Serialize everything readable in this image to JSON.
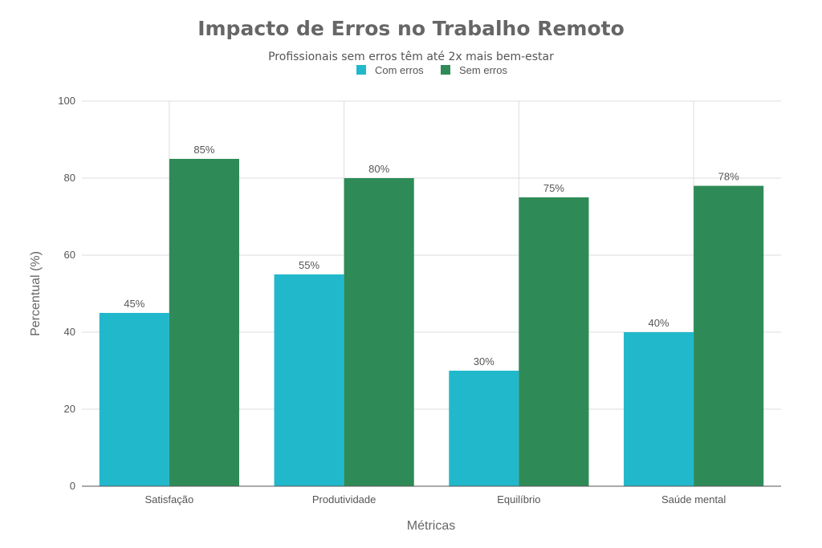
{
  "chart_data": {
    "type": "bar",
    "title": "Impacto de Erros no Trabalho Remoto",
    "subtitle": "Profissionais sem erros têm até 2x mais bem-estar",
    "xlabel": "Métricas",
    "ylabel": "Percentual (%)",
    "categories": [
      "Satisfação",
      "Produtividade",
      "Equilíbrio",
      "Saúde mental"
    ],
    "series": [
      {
        "name": "Com erros",
        "color": "#22b8cc",
        "values": [
          45,
          55,
          30,
          40
        ],
        "labels": [
          "45%",
          "55%",
          "30%",
          "40%"
        ]
      },
      {
        "name": "Sem erros",
        "color": "#2e8b57",
        "values": [
          85,
          80,
          75,
          78
        ],
        "labels": [
          "85%",
          "80%",
          "75%",
          "78%"
        ]
      }
    ],
    "ylim": [
      0,
      100
    ],
    "yticks": [
      0,
      20,
      40,
      60,
      80,
      100
    ],
    "grid": true,
    "legend_position": "top-center"
  }
}
